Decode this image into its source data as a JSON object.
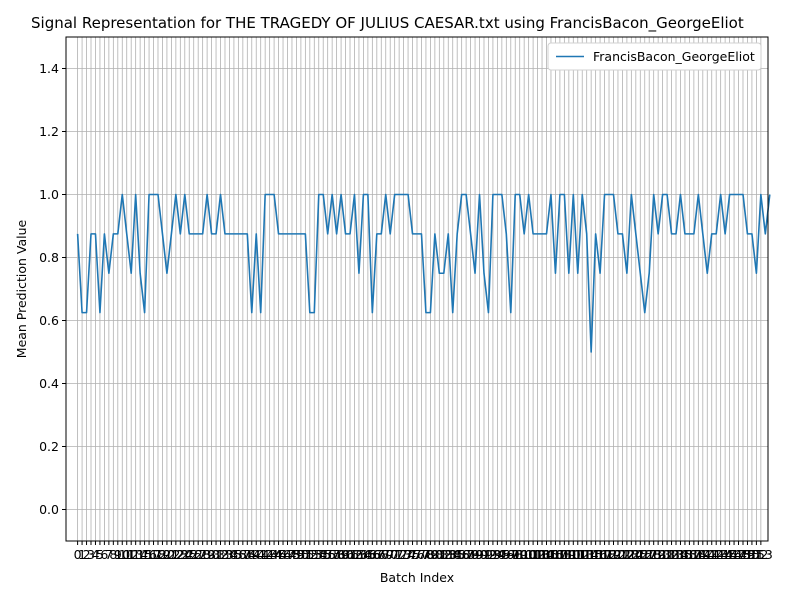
{
  "chart_data": {
    "type": "line",
    "title": "Signal Representation for THE TRAGEDY OF JULIUS CAESAR.txt using FrancisBacon_GeorgeEliot",
    "xlabel": "Batch Index",
    "ylabel": "Mean Prediction Value",
    "ylim": [
      -0.1,
      1.5
    ],
    "xlim": [
      -2.6,
      154.6
    ],
    "yticks": [
      0.0,
      0.2,
      0.4,
      0.6,
      0.8,
      1.0,
      1.2,
      1.4
    ],
    "yticks_text": [
      "0.0",
      "0.2",
      "0.4",
      "0.6",
      "0.8",
      "1.0",
      "1.2",
      "1.4"
    ],
    "xtick_labels": [
      "0",
      "1",
      "2",
      "3",
      "4",
      "5",
      "6",
      "7",
      "8",
      "9",
      "10",
      "11",
      "12",
      "13",
      "14",
      "15",
      "16",
      "17",
      "18",
      "19",
      "20",
      "21",
      "22",
      "23",
      "24",
      "25",
      "26",
      "27",
      "28",
      "29",
      "30",
      "31",
      "32",
      "33",
      "34",
      "35",
      "36",
      "37",
      "38",
      "39",
      "40",
      "41",
      "42",
      "43",
      "44",
      "45",
      "46",
      "47",
      "48",
      "49",
      "50",
      "51",
      "52",
      "53",
      "54",
      "55",
      "56",
      "57",
      "58",
      "59",
      "60",
      "61",
      "62",
      "63",
      "64",
      "65",
      "66",
      "67",
      "68",
      "69",
      "70",
      "71",
      "72",
      "73",
      "74",
      "75",
      "76",
      "77",
      "78",
      "79",
      "80",
      "81",
      "82",
      "83",
      "84",
      "85",
      "86",
      "87",
      "88",
      "89",
      "90",
      "91",
      "92",
      "93",
      "94",
      "95",
      "96",
      "97",
      "98",
      "99",
      "100",
      "101",
      "102",
      "103",
      "104",
      "105",
      "106",
      "107",
      "108",
      "109",
      "110",
      "111",
      "112",
      "113",
      "114",
      "115",
      "116",
      "117",
      "118",
      "119",
      "120",
      "121",
      "122",
      "123",
      "124",
      "125",
      "126",
      "127",
      "128",
      "129",
      "130",
      "131",
      "132",
      "133",
      "134",
      "135",
      "136",
      "137",
      "138",
      "139",
      "140",
      "141",
      "142",
      "143",
      "144",
      "145",
      "146",
      "147",
      "148",
      "149",
      "150",
      "151",
      "152",
      "153"
    ],
    "grid": true,
    "legend_position": "top-right",
    "series": [
      {
        "name": "FrancisBacon_GeorgeEliot",
        "color": "#1f77b4",
        "values": [
          0.875,
          0.625,
          0.625,
          0.875,
          0.875,
          0.625,
          0.875,
          0.75,
          0.875,
          0.875,
          1.0,
          0.875,
          0.75,
          1.0,
          0.75,
          0.625,
          1.0,
          1.0,
          1.0,
          0.875,
          0.75,
          0.875,
          1.0,
          0.875,
          1.0,
          0.875,
          0.875,
          0.875,
          0.875,
          1.0,
          0.875,
          0.875,
          1.0,
          0.875,
          0.875,
          0.875,
          0.875,
          0.875,
          0.875,
          0.625,
          0.875,
          0.625,
          1.0,
          1.0,
          1.0,
          0.875,
          0.875,
          0.875,
          0.875,
          0.875,
          0.875,
          0.875,
          0.625,
          0.625,
          1.0,
          1.0,
          0.875,
          1.0,
          0.875,
          1.0,
          0.875,
          0.875,
          1.0,
          0.75,
          1.0,
          1.0,
          0.625,
          0.875,
          0.875,
          1.0,
          0.875,
          1.0,
          1.0,
          1.0,
          1.0,
          0.875,
          0.875,
          0.875,
          0.625,
          0.625,
          0.875,
          0.75,
          0.75,
          0.875,
          0.625,
          0.875,
          1.0,
          1.0,
          0.875,
          0.75,
          1.0,
          0.75,
          0.625,
          1.0,
          1.0,
          1.0,
          0.875,
          0.625,
          1.0,
          1.0,
          0.875,
          1.0,
          0.875,
          0.875,
          0.875,
          0.875,
          1.0,
          0.75,
          1.0,
          1.0,
          0.75,
          1.0,
          0.75,
          1.0,
          0.875,
          0.5,
          0.875,
          0.75,
          1.0,
          1.0,
          1.0,
          0.875,
          0.875,
          0.75,
          1.0,
          0.875,
          0.75,
          0.625,
          0.75,
          1.0,
          0.875,
          1.0,
          1.0,
          0.875,
          0.875,
          1.0,
          0.875,
          0.875,
          0.875,
          1.0,
          0.875,
          0.75,
          0.875,
          0.875,
          1.0,
          0.875,
          1.0,
          1.0,
          1.0,
          1.0,
          0.875,
          0.875,
          0.75,
          1.0,
          0.875,
          1.0
        ]
      }
    ]
  }
}
